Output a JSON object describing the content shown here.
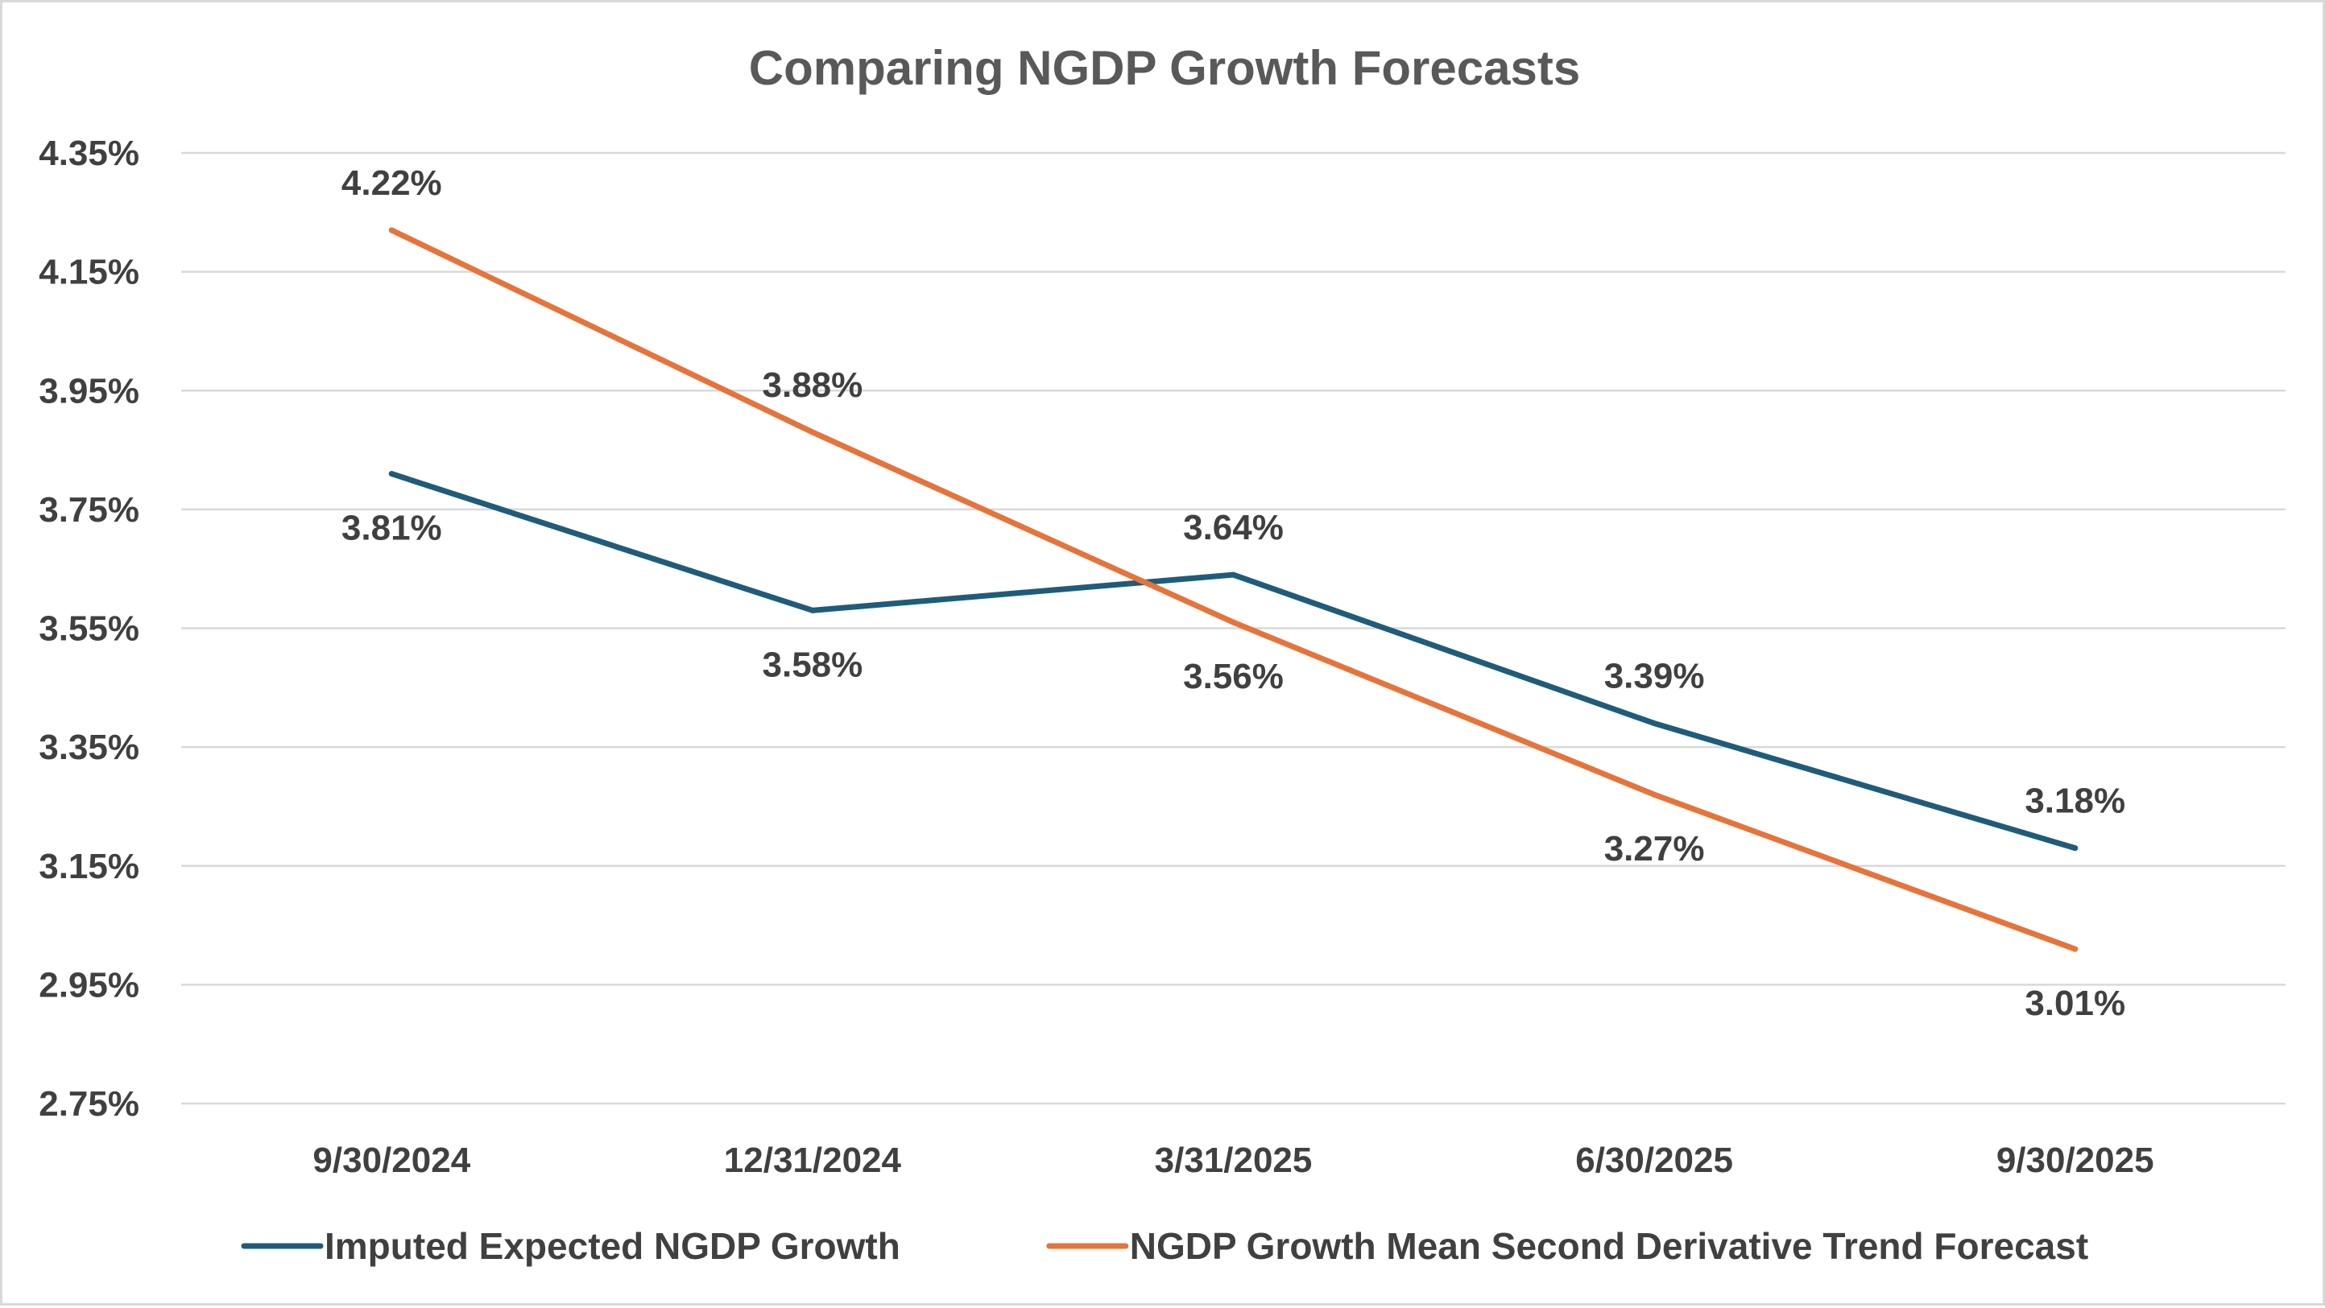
{
  "chart_data": {
    "type": "line",
    "title": "Comparing NGDP Growth Forecasts",
    "xlabel": "",
    "ylabel": "",
    "categories": [
      "9/30/2024",
      "12/31/2024",
      "3/31/2025",
      "6/30/2025",
      "9/30/2025"
    ],
    "y_ticks": [
      "2.75%",
      "2.95%",
      "3.15%",
      "3.35%",
      "3.55%",
      "3.75%",
      "3.95%",
      "4.15%",
      "4.35%"
    ],
    "ylim": [
      2.75,
      4.35
    ],
    "grid": true,
    "legend_position": "bottom",
    "series": [
      {
        "name": "Imputed Expected NGDP Growth",
        "color": "#1f5c7a",
        "values": [
          3.81,
          3.58,
          3.64,
          3.39,
          3.18
        ],
        "labels": [
          "3.81%",
          "3.58%",
          "3.64%",
          "3.39%",
          "3.18%"
        ]
      },
      {
        "name": "NGDP Growth Mean Second Derivative Trend Forecast",
        "color": "#e6743a",
        "values": [
          4.22,
          3.88,
          3.56,
          3.27,
          3.01
        ],
        "labels": [
          "4.22%",
          "3.88%",
          "3.56%",
          "3.27%",
          "3.01%"
        ]
      }
    ]
  }
}
